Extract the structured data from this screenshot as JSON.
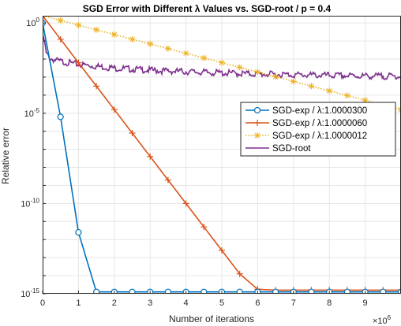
{
  "chart_data": {
    "type": "line",
    "title": "SGD Error with Different λ Values vs. SGD-root / p = 0.4",
    "xlabel": "Number of iterations",
    "ylabel": "Relative error",
    "x_exponent": "×10",
    "x_exponent_power": "6",
    "xlim": [
      0,
      10000000
    ],
    "ylim_log10": [
      -15,
      0.4
    ],
    "y_scale": "log",
    "grid": true,
    "legend_position": "right",
    "x_ticks": [
      "0",
      "1",
      "2",
      "3",
      "4",
      "5",
      "6",
      "7",
      "8",
      "9"
    ],
    "y_ticks": [
      {
        "base": "10",
        "exp": "0",
        "log": 0
      },
      {
        "base": "10",
        "exp": "-5",
        "log": -5
      },
      {
        "base": "10",
        "exp": "-10",
        "log": -10
      },
      {
        "base": "10",
        "exp": "-15",
        "log": -15
      }
    ],
    "series": [
      {
        "name": "SGD-exp / λ:1.0000300",
        "color": "#0072BD",
        "marker": "circle",
        "line": "solid",
        "x": [
          0,
          500000,
          1000000,
          1500000,
          2000000,
          2500000,
          3000000,
          3500000,
          4000000,
          4500000,
          5000000,
          5500000,
          6000000,
          6500000,
          7000000,
          7500000,
          8000000,
          8500000,
          9000000,
          9500000,
          10000000
        ],
        "log10_y": [
          0,
          -5.2,
          -11.6,
          -14.9,
          -14.9,
          -14.9,
          -14.9,
          -14.9,
          -14.9,
          -14.9,
          -14.9,
          -14.9,
          -14.9,
          -14.9,
          -14.9,
          -14.9,
          -14.9,
          -14.9,
          -14.9,
          -14.9,
          -14.9
        ]
      },
      {
        "name": "SGD-exp / λ:1.0000060",
        "color": "#D95319",
        "marker": "plus",
        "line": "solid",
        "x": [
          0,
          500000,
          1000000,
          1500000,
          2000000,
          2500000,
          3000000,
          3500000,
          4000000,
          4500000,
          5000000,
          5500000,
          6000000,
          6500000,
          7000000,
          7500000,
          8000000,
          8500000,
          9000000,
          9500000,
          10000000
        ],
        "log10_y": [
          0.4,
          -0.9,
          -2.2,
          -3.5,
          -4.8,
          -6.1,
          -7.4,
          -8.7,
          -10.0,
          -11.3,
          -12.6,
          -13.9,
          -14.75,
          -14.8,
          -14.8,
          -14.8,
          -14.8,
          -14.8,
          -14.8,
          -14.8,
          -14.8
        ]
      },
      {
        "name": "SGD-exp / λ:1.0000012",
        "color": "#EDB120",
        "marker": "asterisk",
        "line": "dotted",
        "x": [
          0,
          500000,
          1000000,
          1500000,
          2000000,
          2500000,
          3000000,
          3500000,
          4000000,
          4500000,
          5000000,
          5500000,
          6000000,
          6500000,
          7000000,
          7500000,
          8000000,
          8500000,
          9000000,
          9500000,
          10000000
        ],
        "log10_y": [
          0.4,
          0.14,
          -0.12,
          -0.38,
          -0.64,
          -0.9,
          -1.16,
          -1.42,
          -1.68,
          -1.94,
          -2.2,
          -2.46,
          -2.72,
          -2.98,
          -3.24,
          -3.5,
          -3.76,
          -4.02,
          -4.28,
          -4.54,
          -4.8
        ]
      },
      {
        "name": "SGD-root",
        "color": "#7E2F8E",
        "marker": "none",
        "line": "solid",
        "x": [
          0,
          50000,
          100000,
          200000,
          400000,
          700000,
          1000000,
          2000000,
          3000000,
          4000000,
          5000000,
          6000000,
          7000000,
          8000000,
          9000000,
          10000000
        ],
        "log10_y": [
          -0.6,
          -1.0,
          -1.7,
          -1.95,
          -2.1,
          -2.2,
          -2.3,
          -2.5,
          -2.62,
          -2.7,
          -2.77,
          -2.83,
          -2.87,
          -2.91,
          -2.94,
          -2.96
        ]
      }
    ]
  }
}
